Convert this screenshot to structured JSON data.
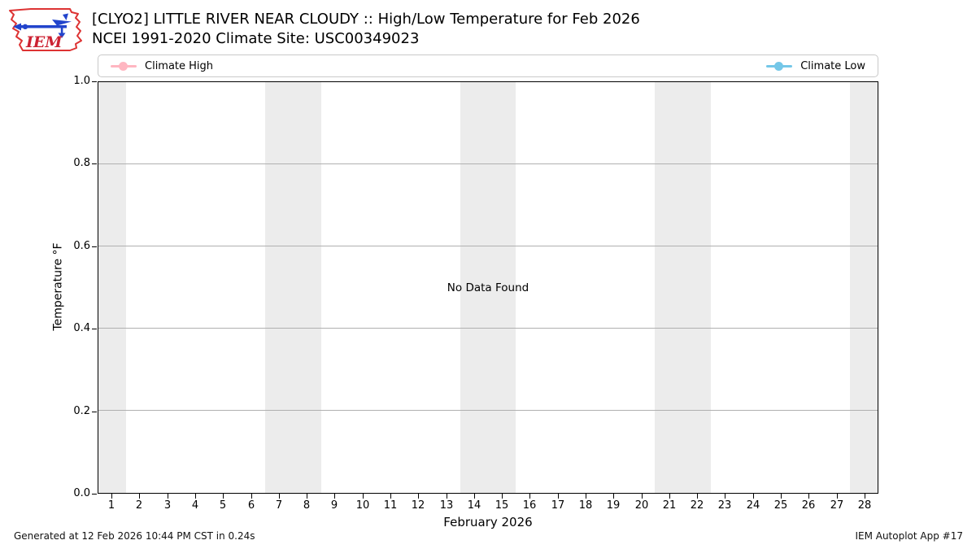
{
  "header": {
    "logo": {
      "text": "IEM"
    },
    "title": "[CLYO2] LITTLE RIVER NEAR CLOUDY :: High/Low Temperature for Feb 2026",
    "subtitle": "NCEI 1991-2020 Climate Site: USC00349023"
  },
  "legend": {
    "entries": [
      {
        "label": "Climate High",
        "color": "#ffb6c1"
      },
      {
        "label": "Climate Low",
        "color": "#74c7e8"
      }
    ]
  },
  "chart_data": {
    "type": "line",
    "title": "[CLYO2] LITTLE RIVER NEAR CLOUDY :: High/Low Temperature for Feb 2026",
    "subtitle": "NCEI 1991-2020 Climate Site: USC00349023",
    "xlabel": "February 2026",
    "ylabel": "Temperature °F",
    "xlim": [
      0.5,
      28.5
    ],
    "ylim": [
      0.0,
      1.0
    ],
    "x_ticks": [
      1,
      2,
      3,
      4,
      5,
      6,
      7,
      8,
      9,
      10,
      11,
      12,
      13,
      14,
      15,
      16,
      17,
      18,
      19,
      20,
      21,
      22,
      23,
      24,
      25,
      26,
      27,
      28
    ],
    "y_ticks": [
      0.0,
      0.2,
      0.4,
      0.6,
      0.8,
      1.0
    ],
    "grid": true,
    "legend_position": "top expanded full-width",
    "series": [
      {
        "name": "Climate High",
        "color": "#ffb6c1",
        "x": [],
        "values": []
      },
      {
        "name": "Climate Low",
        "color": "#74c7e8",
        "x": [],
        "values": []
      }
    ],
    "no_data_message": "No Data Found",
    "weekend_shading_day_ranges": [
      [
        0.5,
        1.5
      ],
      [
        6.5,
        8.5
      ],
      [
        13.5,
        15.5
      ],
      [
        20.5,
        22.5
      ],
      [
        27.5,
        28.5
      ]
    ],
    "shading_color": "#ececec",
    "grid_color": "#b0b0b0"
  },
  "footer": {
    "left": "Generated at 12 Feb 2026 10:44 PM CST in 0.24s",
    "right": "IEM Autoplot App #17"
  }
}
